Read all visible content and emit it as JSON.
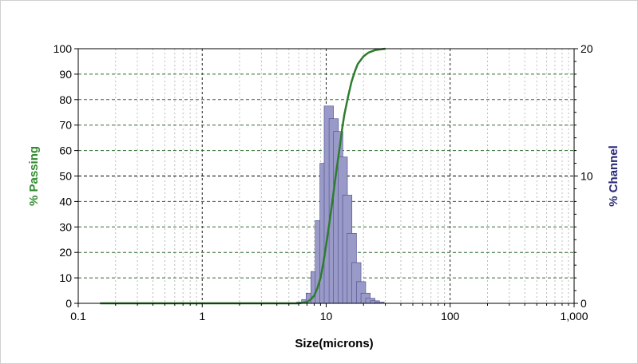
{
  "chart_data": {
    "type": "bar+line",
    "title": "",
    "xlabel": "Size(microns)",
    "ylabel_left": "% Passing",
    "ylabel_right": "% Channel",
    "x_scale": "log",
    "xlim": [
      0.1,
      1000
    ],
    "ylim_left": [
      0,
      100
    ],
    "ylim_right": [
      0,
      20
    ],
    "x_tick_labels": [
      "0.1",
      "1",
      "10",
      "100",
      "1,000"
    ],
    "y_left_tick_labels": [
      "0",
      "10",
      "20",
      "30",
      "40",
      "50",
      "60",
      "70",
      "80",
      "90",
      "100"
    ],
    "y_right_tick_labels": [
      "0",
      "10",
      "20"
    ],
    "grid": true,
    "legend": "none",
    "colors": {
      "passing": "#2e7d2e",
      "channel_fill": "#9a9ac8",
      "channel_edge": "#4a4a8a",
      "ylabel_left": "#2e8b2e",
      "ylabel_right": "#2a2a7a",
      "grid_minor": "#bdbdbd",
      "grid_major": "#1a1a1a",
      "grid_horizontal": "#2e6b2e"
    },
    "series": [
      {
        "name": "% Passing",
        "type": "line",
        "axis": "left",
        "x": [
          0.15,
          1,
          3,
          6,
          7,
          7.5,
          8,
          8.5,
          9,
          9.5,
          10,
          10.5,
          11,
          11.5,
          12,
          12.5,
          13,
          13.5,
          14,
          15,
          16,
          17,
          18,
          20,
          22,
          25,
          30
        ],
        "y": [
          0,
          0,
          0,
          0,
          0.5,
          1.5,
          3,
          6,
          10,
          16,
          23,
          30,
          37,
          44,
          51,
          57,
          63,
          69,
          74,
          81,
          87,
          91,
          94,
          97,
          98.5,
          99.5,
          100
        ]
      },
      {
        "name": "% Channel",
        "type": "bar",
        "axis": "right",
        "x": [
          6.3,
          6.9,
          7.5,
          8.2,
          8.9,
          9.7,
          10.5,
          11.5,
          12.5,
          13.6,
          14.8,
          16.1,
          17.5,
          19.1,
          20.8,
          22.7,
          24.7,
          26.9
        ],
        "y": [
          0.1,
          0.3,
          0.8,
          2.5,
          6.5,
          11,
          15.5,
          14.5,
          13.5,
          11.5,
          8.5,
          5.5,
          3.2,
          1.7,
          0.8,
          0.4,
          0.2,
          0.1
        ]
      }
    ]
  }
}
